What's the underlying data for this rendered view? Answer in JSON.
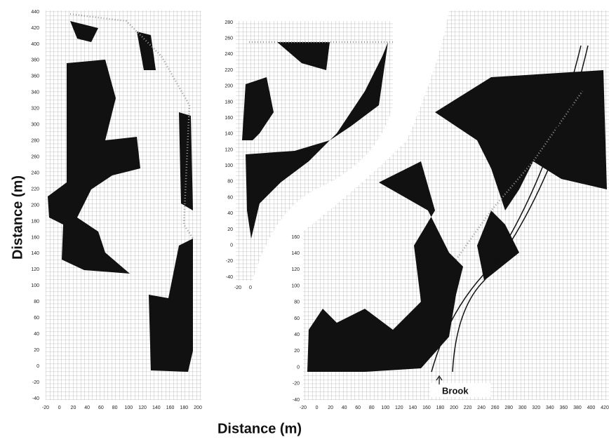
{
  "axis_title_x": "Distance   (m)",
  "axis_title_y": "Distance   (m)",
  "annotation": "Brook",
  "panels": [
    {
      "x_ticks": [
        -20,
        0,
        20,
        40,
        60,
        80,
        100,
        120,
        140,
        160,
        180,
        200
      ],
      "y_ticks": [
        -40,
        -20,
        0,
        20,
        40,
        60,
        80,
        100,
        120,
        140,
        160,
        180,
        200,
        220,
        240,
        260,
        280,
        300,
        320,
        340,
        360,
        380,
        400,
        420,
        440
      ]
    },
    {
      "x_ticks": [
        -20,
        0
      ],
      "y_ticks": [
        -40,
        -20,
        0,
        20,
        40,
        60,
        80,
        100,
        120,
        140,
        160,
        180,
        200,
        220,
        240,
        260,
        280
      ]
    },
    {
      "x_ticks": [
        -20,
        0,
        20,
        40,
        60,
        80,
        100,
        120,
        140,
        160,
        180,
        200,
        220,
        240,
        260,
        280,
        300,
        320,
        340,
        360,
        380,
        400,
        420
      ],
      "y_ticks": [
        -40,
        -20,
        0,
        20,
        40,
        60,
        80,
        100,
        120,
        140,
        160
      ]
    }
  ]
}
